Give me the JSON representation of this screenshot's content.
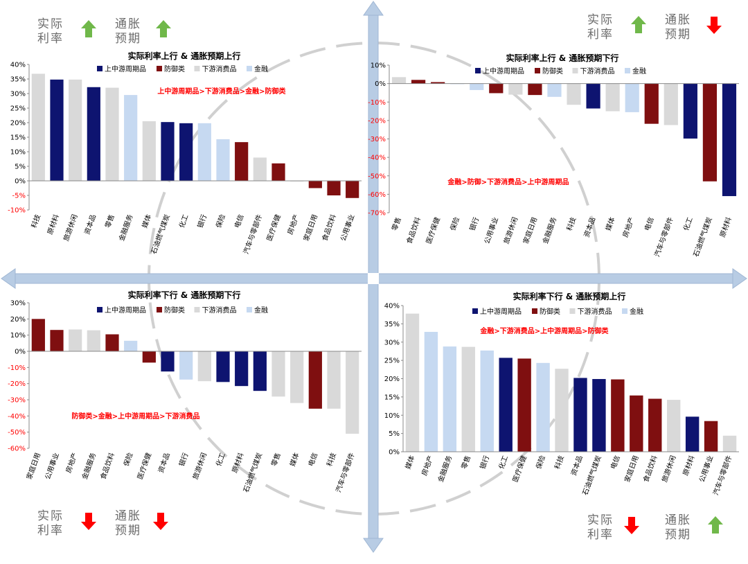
{
  "colors": {
    "上中游周期品": "#0e1470",
    "防御类": "#7f0f10",
    "下游消费品": "#d9d9d9",
    "金融": "#c6d9f1",
    "annotation": "#ff0000",
    "axis_arrow": "#b8cce4",
    "up_arrow": "#70b84a",
    "down_arrow": "#ff0000"
  },
  "quadrant_labels": {
    "q1": {
      "rate_top": "实际",
      "rate_bottom": "利率",
      "infl_top": "通胀",
      "infl_bottom": "预期",
      "rate_dir": "up",
      "infl_dir": "up"
    },
    "q2": {
      "rate_top": "实际",
      "rate_bottom": "利率",
      "infl_top": "通胀",
      "infl_bottom": "预期",
      "rate_dir": "up",
      "infl_dir": "down"
    },
    "q3": {
      "rate_top": "实际",
      "rate_bottom": "利率",
      "infl_top": "通胀",
      "infl_bottom": "预期",
      "rate_dir": "down",
      "infl_dir": "down"
    },
    "q4": {
      "rate_top": "实际",
      "rate_bottom": "利率",
      "infl_top": "通胀",
      "infl_bottom": "预期",
      "rate_dir": "down",
      "infl_dir": "up"
    }
  },
  "chart_data": [
    {
      "type": "bar",
      "title": "实际利率上行 & 通胀预期上行",
      "legend": [
        "上中游周期品",
        "防御类",
        "下游消费品",
        "金融"
      ],
      "annotation": "上中游周期品>下游消费品>金融>防御类",
      "yticks": [
        "40%",
        "35%",
        "30%",
        "25%",
        "20%",
        "15%",
        "10%",
        "5%",
        "0%",
        "-5%",
        "-10%"
      ],
      "ylim": [
        -10,
        40
      ],
      "categories": [
        "科技",
        "原材料",
        "旅游休闲",
        "资本品",
        "零售",
        "金融服务",
        "媒体",
        "石油燃气煤炭",
        "化工",
        "银行",
        "保险",
        "电信",
        "汽车与零部件",
        "医疗保健",
        "房地产",
        "家庭日用",
        "食品饮料",
        "公用事业"
      ],
      "values": [
        36.8,
        34.8,
        34.8,
        32.2,
        32.0,
        29.5,
        20.5,
        20.2,
        19.8,
        19.8,
        14.3,
        13.3,
        8.0,
        6.0,
        -0.2,
        -2.5,
        -5.0,
        -5.9
      ],
      "groups": [
        "下游消费品",
        "上中游周期品",
        "下游消费品",
        "上中游周期品",
        "下游消费品",
        "金融",
        "下游消费品",
        "上中游周期品",
        "上中游周期品",
        "金融",
        "金融",
        "防御类",
        "下游消费品",
        "防御类",
        "下游消费品",
        "防御类",
        "防御类",
        "防御类"
      ]
    },
    {
      "type": "bar",
      "title": "实际利率上行 & 通胀预期下行",
      "legend": [
        "上中游周期品",
        "防御类",
        "下游消费品",
        "金融"
      ],
      "annotation": "金融>防御>下游消费品>上中游周期品",
      "yticks": [
        "10%",
        "0%",
        "-10%",
        "-20%",
        "-30%",
        "-40%",
        "-50%",
        "-60%",
        "-70%"
      ],
      "ylim": [
        -70,
        10
      ],
      "categories": [
        "零售",
        "食品饮料",
        "医疗保健",
        "保险",
        "银行",
        "公用事业",
        "旅游休闲",
        "家庭日用",
        "金融服务",
        "科技",
        "资本品",
        "媒体",
        "房地产",
        "电信",
        "汽车与零部件",
        "化工",
        "石油燃气煤炭",
        "原材料"
      ],
      "values": [
        3.5,
        2.0,
        0.8,
        -0.3,
        -3.5,
        -5.2,
        -6.0,
        -6.2,
        -7.2,
        -11.5,
        -13.5,
        -15.0,
        -15.5,
        -21.8,
        -22.5,
        -29.8,
        -53.0,
        -61.0
      ],
      "groups": [
        "下游消费品",
        "防御类",
        "防御类",
        "金融",
        "金融",
        "防御类",
        "下游消费品",
        "防御类",
        "金融",
        "下游消费品",
        "上中游周期品",
        "下游消费品",
        "金融",
        "防御类",
        "下游消费品",
        "上中游周期品",
        "防御类",
        "上中游周期品"
      ]
    },
    {
      "type": "bar",
      "title": "实际利率下行 & 通胀预期下行",
      "legend": [
        "上中游周期品",
        "防御类",
        "下游消费品",
        "金融"
      ],
      "annotation": "防御类>金融>上中游周期品>下游消费品",
      "yticks": [
        "30%",
        "20%",
        "10%",
        "0%",
        "-10%",
        "-20%",
        "-30%",
        "-40%",
        "-50%",
        "-60%"
      ],
      "ylim": [
        -60,
        30
      ],
      "categories": [
        "家庭日用",
        "公用事业",
        "房地产",
        "金融服务",
        "食品饮料",
        "保险",
        "医疗保健",
        "资本品",
        "银行",
        "旅游休闲",
        "化工",
        "原材料",
        "石油燃气煤炭",
        "零售",
        "媒体",
        "电信",
        "科技",
        "汽车与零部件"
      ],
      "values": [
        20.0,
        13.2,
        13.5,
        13.0,
        10.5,
        6.5,
        -7.0,
        -12.5,
        -17.5,
        -18.5,
        -19.0,
        -21.5,
        -24.5,
        -28.0,
        -32.0,
        -35.5,
        -35.5,
        -51.0
      ],
      "groups": [
        "防御类",
        "防御类",
        "下游消费品",
        "下游消费品",
        "防御类",
        "金融",
        "防御类",
        "上中游周期品",
        "金融",
        "下游消费品",
        "上中游周期品",
        "上中游周期品",
        "上中游周期品",
        "下游消费品",
        "下游消费品",
        "防御类",
        "下游消费品",
        "下游消费品"
      ]
    },
    {
      "type": "bar",
      "title": "实际利率下行 & 通胀预期上行",
      "legend": [
        "上中游周期品",
        "防御类",
        "下游消费品",
        "金融"
      ],
      "annotation": "金融>下游消费品>上中游周期品>防御类",
      "yticks": [
        "40%",
        "35%",
        "30%",
        "25%",
        "20%",
        "15%",
        "10%",
        "5%",
        "0%"
      ],
      "ylim": [
        0,
        40
      ],
      "categories": [
        "媒体",
        "房地产",
        "金融服务",
        "零售",
        "银行",
        "化工",
        "医疗保健",
        "保险",
        "科技",
        "资本品",
        "石油燃气煤炭",
        "电信",
        "家庭日用",
        "食品饮料",
        "旅游休闲",
        "原材料",
        "公用事业",
        "汽车与零部件"
      ],
      "values": [
        37.8,
        32.8,
        28.8,
        28.7,
        27.7,
        25.7,
        25.5,
        24.3,
        22.7,
        20.2,
        19.9,
        19.8,
        15.4,
        14.5,
        14.2,
        9.6,
        8.4,
        4.4
      ],
      "groups": [
        "下游消费品",
        "金融",
        "金融",
        "下游消费品",
        "金融",
        "上中游周期品",
        "防御类",
        "金融",
        "下游消费品",
        "上中游周期品",
        "上中游周期品",
        "防御类",
        "防御类",
        "防御类",
        "下游消费品",
        "上中游周期品",
        "防御类",
        "下游消费品"
      ]
    }
  ]
}
